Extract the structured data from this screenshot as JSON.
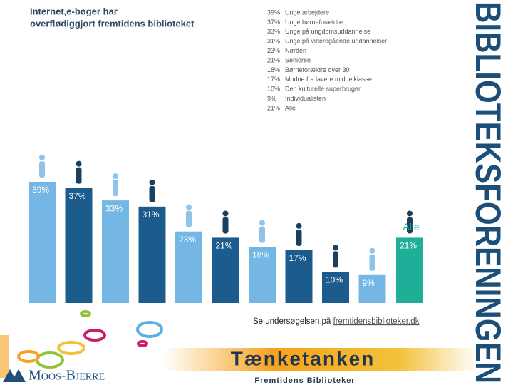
{
  "chart_data": {
    "type": "bar",
    "title": [
      "Internet,e-bøger har",
      "overflødiggjort fremtidens biblioteket"
    ],
    "categories": [
      "Unge arbejdere",
      "Unge børneforældre",
      "Unge på ungdomsuddannelse",
      "Unge på videregående uddannelser",
      "Nørden",
      "Senioren",
      "Børneforældre over 30",
      "Modne fra lavere middelklasse",
      "Den kulturelle superbruger",
      "Individualisten",
      "Alle"
    ],
    "values": [
      39,
      37,
      33,
      31,
      23,
      21,
      18,
      17,
      10,
      9,
      21
    ],
    "value_labels": [
      "39%",
      "37%",
      "33%",
      "31%",
      "23%",
      "21%",
      "18%",
      "17%",
      "10%",
      "9%",
      "21%"
    ],
    "colors": [
      "#74b6e4",
      "#1b5c8c",
      "#74b6e4",
      "#1b5c8c",
      "#74b6e4",
      "#1b5c8c",
      "#74b6e4",
      "#1b5c8c",
      "#1b5c8c",
      "#74b6e4",
      "#1fae98"
    ],
    "source_text": "Se undersøgelsen på ",
    "source_link": "fremtidensbiblioteker.dk"
  },
  "branding": {
    "side": "BIBLIOTEKSFORENINGEN",
    "footer_title": "Tænketanken",
    "footer_subtitle": "Fremtidens Biblioteker",
    "company": "Moos-Bjerre"
  }
}
